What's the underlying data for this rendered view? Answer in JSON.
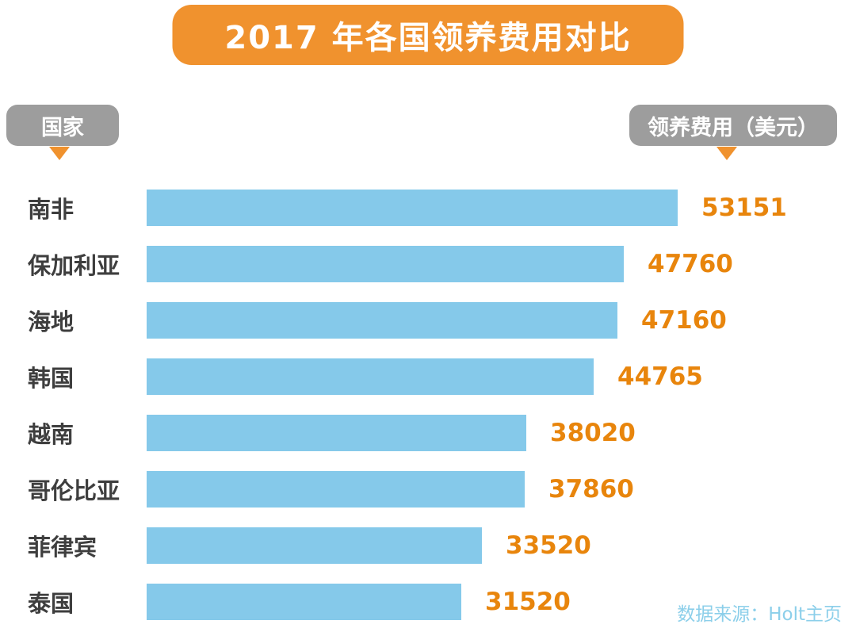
{
  "colors": {
    "banner_orange": "#F0922E",
    "bar_blue": "#85C9EA",
    "value_orange": "#E8850C",
    "pill_gray": "#9D9D9D",
    "country_text": "#3E3E3E",
    "source_blue": "#8CCFEA"
  },
  "chart_data": {
    "type": "bar",
    "orientation": "horizontal",
    "title": "2017 年各国领养费用对比",
    "column_headers": [
      "国家",
      "领养费用（美元）"
    ],
    "categories": [
      "南非",
      "保加利亚",
      "海地",
      "韩国",
      "越南",
      "哥伦比亚",
      "菲律宾",
      "泰国"
    ],
    "values": [
      53151,
      47760,
      47160,
      44765,
      38020,
      37860,
      33520,
      31520
    ],
    "value_max": 53151,
    "xlim": [
      0,
      53151
    ],
    "grid": false,
    "legend": "none",
    "source": "数据来源：Holt主页"
  }
}
